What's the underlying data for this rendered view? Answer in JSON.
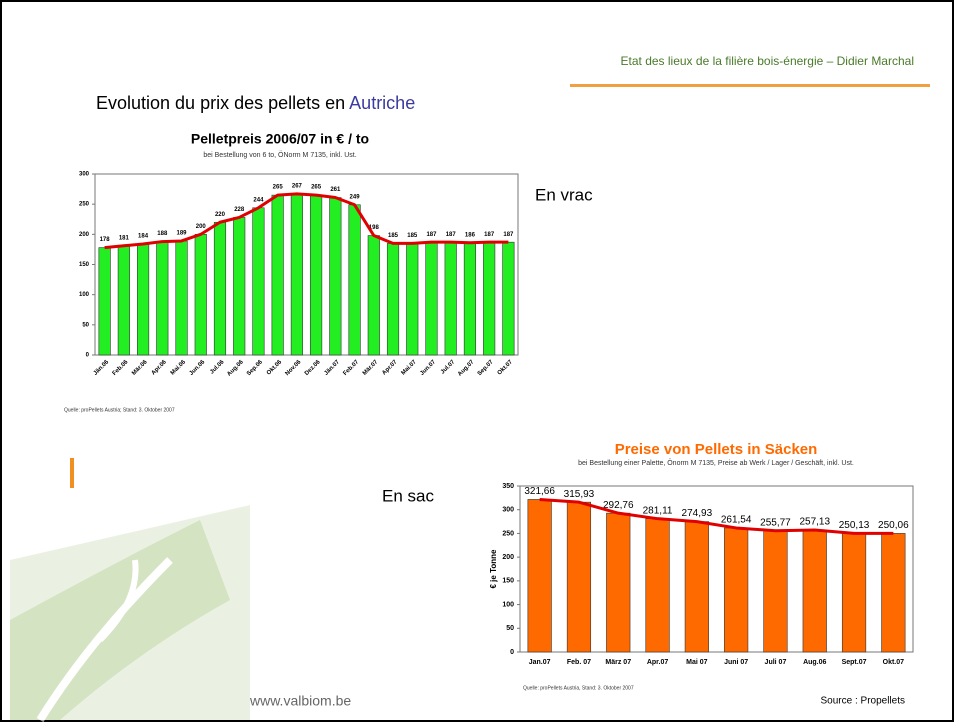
{
  "slide": {
    "header": "Etat des lieux de la filière bois-énergie – Didier Marchal",
    "title": "Evolution du prix des pellets en ",
    "title_country": "Autriche",
    "label_bulk": "En vrac",
    "label_bag": "En sac",
    "website": "www.valbiom.be",
    "source": "Source : Propellets"
  },
  "chart_data": [
    {
      "type": "bar",
      "title": "Pelletpreis 2006/07 in € / to",
      "subtitle": "bei Bestellung von 6 to, ÖNorm M 7135, inkl. Ust.",
      "note": "Quelle: proPellets Austria; Stand: 3. Oktober 2007",
      "categories": [
        "Jän.06",
        "Feb.06",
        "Mär.06",
        "Apr.06",
        "Mai.06",
        "Jun.06",
        "Jul.06",
        "Aug.06",
        "Sep.06",
        "Okt.06",
        "Nov.06",
        "Dez.06",
        "Jän.07",
        "Feb.07",
        "Mär.07",
        "Apr.07",
        "Mai.07",
        "Jun.07",
        "Jul.07",
        "Aug.07",
        "Sep.07",
        "Okt.07"
      ],
      "values": [
        178,
        181,
        184,
        188,
        189,
        200,
        220,
        228,
        244,
        265,
        267,
        265,
        261,
        249,
        198,
        185,
        185,
        187,
        187,
        186,
        187,
        187
      ],
      "color": "#22ee22",
      "line_color": "#e00000",
      "ylim": [
        0,
        300
      ],
      "yticks": [
        0,
        50,
        100,
        150,
        200,
        250,
        300
      ],
      "grid": false
    },
    {
      "type": "bar",
      "title": "Preise von Pellets in Säcken",
      "subtitle": "bei Bestellung einer Palette, Önorm M 7135, Preise ab Werk / Lager / Geschäft, inkl. Ust.",
      "note": "Quelle: proPellets Austria, Stand: 3. Oktober 2007",
      "y_label": "€ je Tonne",
      "categories": [
        "Jan.07",
        "Feb. 07",
        "März 07",
        "Apr.07",
        "Mai 07",
        "Juni 07",
        "Juli 07",
        "Aug.06",
        "Sept.07",
        "Okt.07"
      ],
      "values": [
        321.66,
        315.93,
        292.76,
        281.11,
        274.93,
        261.54,
        255.77,
        257.13,
        250.13,
        250.06
      ],
      "value_labels": [
        "321,66",
        "315,93",
        "292,76",
        "281,11",
        "274,93",
        "261,54",
        "255,77",
        "257,13",
        "250,13",
        "250,06"
      ],
      "color": "#ff6a00",
      "line_color": "#e00000",
      "ylim": [
        0,
        350
      ],
      "yticks": [
        0,
        50,
        100,
        150,
        200,
        250,
        300,
        350
      ],
      "grid": false
    }
  ]
}
